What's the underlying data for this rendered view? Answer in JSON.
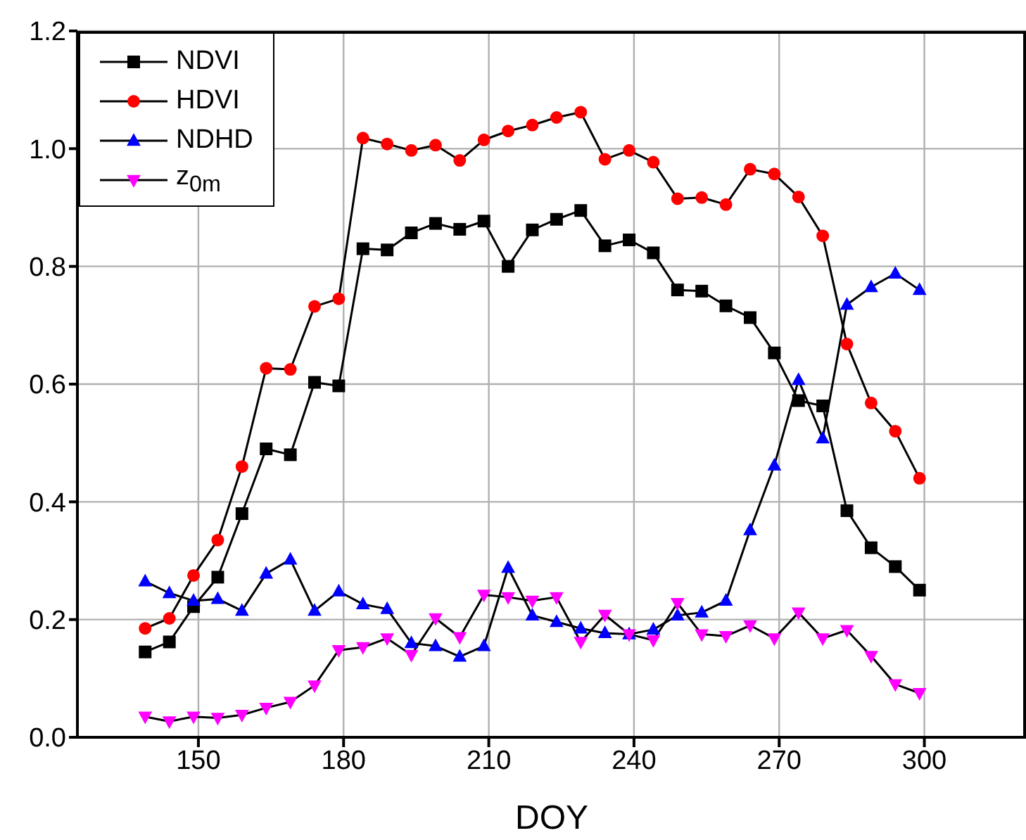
{
  "chart_data": {
    "type": "line",
    "xlabel": "DOY",
    "x": [
      139,
      144,
      149,
      154,
      159,
      164,
      169,
      174,
      179,
      184,
      189,
      194,
      199,
      204,
      209,
      214,
      219,
      224,
      229,
      234,
      239,
      244,
      249,
      254,
      259,
      264,
      269,
      274,
      279,
      284,
      289,
      294,
      299
    ],
    "series": [
      {
        "name": "NDVI",
        "color": "#000000",
        "marker": "square",
        "values": [
          0.145,
          0.162,
          0.222,
          0.272,
          0.38,
          0.49,
          0.48,
          0.603,
          0.597,
          0.83,
          0.828,
          0.857,
          0.873,
          0.863,
          0.877,
          0.8,
          0.862,
          0.88,
          0.895,
          0.835,
          0.845,
          0.823,
          0.76,
          0.758,
          0.733,
          0.713,
          0.653,
          0.572,
          0.563,
          0.385,
          0.322,
          0.29,
          0.25
        ]
      },
      {
        "name": "HDVI",
        "color": "#ff0000",
        "marker": "circle",
        "values": [
          0.185,
          0.202,
          0.275,
          0.335,
          0.46,
          0.627,
          0.625,
          0.732,
          0.745,
          1.018,
          1.008,
          0.997,
          1.006,
          0.98,
          1.015,
          1.03,
          1.04,
          1.053,
          1.062,
          0.982,
          0.997,
          0.977,
          0.915,
          0.917,
          0.905,
          0.965,
          0.957,
          0.918,
          0.852,
          0.668,
          0.568,
          0.52,
          0.44
        ]
      },
      {
        "name": "NDHD",
        "color": "#0000ff",
        "marker": "triangle",
        "values": [
          0.265,
          0.245,
          0.232,
          0.235,
          0.215,
          0.278,
          0.302,
          0.215,
          0.248,
          0.226,
          0.218,
          0.16,
          0.155,
          0.137,
          0.155,
          0.288,
          0.207,
          0.196,
          0.185,
          0.177,
          0.175,
          0.183,
          0.207,
          0.212,
          0.232,
          0.352,
          0.462,
          0.607,
          0.508,
          0.735,
          0.765,
          0.788,
          0.76
        ]
      },
      {
        "name": "z$_{0m}$",
        "color": "#ff00ff",
        "marker": "triangle-down",
        "values": [
          0.035,
          0.027,
          0.035,
          0.033,
          0.038,
          0.05,
          0.06,
          0.088,
          0.148,
          0.153,
          0.168,
          0.14,
          0.202,
          0.17,
          0.242,
          0.238,
          0.232,
          0.238,
          0.162,
          0.208,
          0.175,
          0.165,
          0.228,
          0.175,
          0.172,
          0.19,
          0.168,
          0.212,
          0.168,
          0.182,
          0.138,
          0.09,
          0.075
        ]
      }
    ],
    "xlim": [
      125,
      321
    ],
    "xticks": [
      150,
      180,
      210,
      240,
      270,
      300
    ],
    "ylim": [
      0,
      1.2
    ],
    "yticks": [
      {
        "value": 0,
        "label": "0.0"
      },
      {
        "value": 0.2,
        "label": "0.2"
      },
      {
        "value": 0.4,
        "label": "0.4"
      },
      {
        "value": 0.6,
        "label": "0.6"
      },
      {
        "value": 0.8,
        "label": "0.8"
      },
      {
        "value": 1.0,
        "label": "1.0"
      },
      {
        "value": 1.2,
        "label": "1.2"
      }
    ],
    "grid": true,
    "legend": "top left",
    "line_style": "solid"
  }
}
